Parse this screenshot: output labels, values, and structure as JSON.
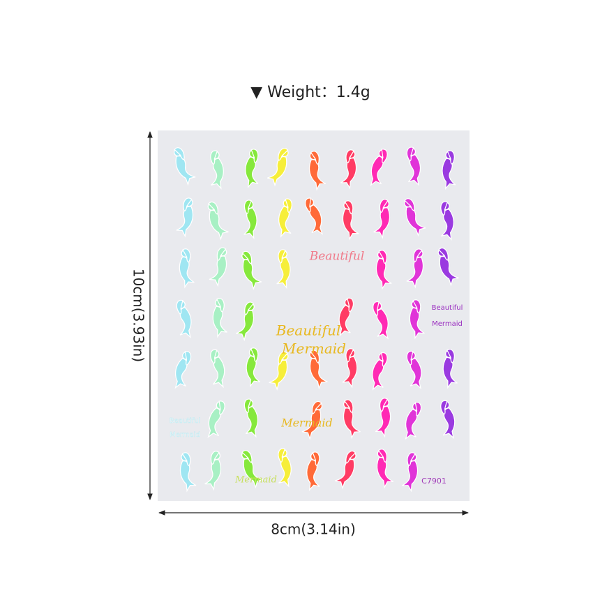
{
  "header": {
    "weight": "▼ Weight：1.4g"
  },
  "dimensions": {
    "height": "10cm(3.93in)",
    "width": "8cm(3.14in)"
  },
  "sticker_sheet": {
    "labels": [
      "Beautiful",
      "Beautiful",
      "Mermaid",
      "Beautiful",
      "Mermaid",
      "Beautiful",
      "Mermaid",
      "Mermaid",
      "Mermaid"
    ],
    "code": "C7901"
  }
}
